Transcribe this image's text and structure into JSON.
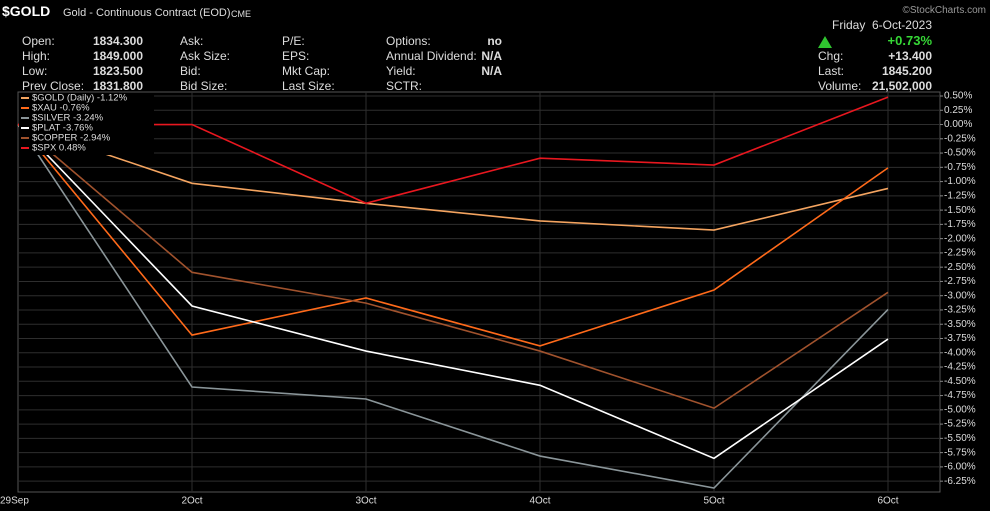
{
  "header": {
    "symbol": "$GOLD",
    "description": "Gold - Continuous Contract (EOD)",
    "exchange": "CME",
    "watermark": "©StockCharts.com",
    "weekday": "Friday",
    "date": "6-Oct-2023",
    "change_pct": "+0.73%"
  },
  "quote": {
    "columns": [
      [
        {
          "label": "Open:",
          "value": "1834.300"
        },
        {
          "label": "High:",
          "value": "1849.000"
        },
        {
          "label": "Low:",
          "value": "1823.500"
        },
        {
          "label": "Prev Close:",
          "value": "1831.800"
        }
      ],
      [
        {
          "label": "Ask:"
        },
        {
          "label": "Ask Size:"
        },
        {
          "label": "Bid:"
        },
        {
          "label": "Bid Size:"
        }
      ],
      [
        {
          "label": "P/E:"
        },
        {
          "label": "EPS:"
        },
        {
          "label": "Mkt Cap:"
        },
        {
          "label": "Last Size:"
        }
      ],
      [
        {
          "label": "Options:",
          "value": "no"
        },
        {
          "label": "Annual Dividend:",
          "value": "N/A"
        },
        {
          "label": "Yield:",
          "value": "N/A"
        },
        {
          "label": "SCTR:"
        }
      ],
      [
        {
          "label": "Chg:",
          "value": "+13.400"
        },
        {
          "label": "Last:",
          "value": "1845.200"
        },
        {
          "label": "Volume:",
          "value": "21,502,000"
        }
      ]
    ]
  },
  "chart_data": {
    "type": "line",
    "categories": [
      "29Sep",
      "2Oct",
      "3Oct",
      "4Oct",
      "5Oct",
      "6Oct"
    ],
    "series": [
      {
        "name": "$GOLD (Daily) -1.12%",
        "color": "#f4a460",
        "values": [
          0,
          -1.03,
          -1.38,
          -1.69,
          -1.85,
          -1.12
        ]
      },
      {
        "name": "$XAU -0.76%",
        "color": "#ff6a1a",
        "values": [
          0,
          -3.69,
          -3.04,
          -3.88,
          -2.9,
          -0.76
        ]
      },
      {
        "name": "$SILVER -3.24%",
        "color": "#8a9599",
        "values": [
          0,
          -4.6,
          -4.81,
          -5.81,
          -6.37,
          -3.24
        ]
      },
      {
        "name": "$PLAT -3.76%",
        "color": "#ffffff",
        "values": [
          0,
          -3.18,
          -3.97,
          -4.57,
          -5.85,
          -3.76
        ]
      },
      {
        "name": "$COPPER -2.94%",
        "color": "#a0522d",
        "values": [
          0,
          -2.59,
          -3.13,
          -3.97,
          -4.97,
          -2.94
        ]
      },
      {
        "name": "$SPX 0.48%",
        "color": "#e8171f",
        "values": [
          0,
          0,
          -1.38,
          -0.59,
          -0.71,
          0.48
        ]
      }
    ],
    "ylim": [
      -6.44,
      0.57
    ],
    "yticks": [
      {
        "value": 0.5,
        "label": "0.50%"
      },
      {
        "value": 0.25,
        "label": "0.25%"
      },
      {
        "value": 0,
        "label": "0.00%"
      },
      {
        "value": -0.25,
        "label": "-0.25%"
      },
      {
        "value": -0.5,
        "label": "-0.50%"
      },
      {
        "value": -0.75,
        "label": "-0.75%"
      },
      {
        "value": -1,
        "label": "-1.00%"
      },
      {
        "value": -1.25,
        "label": "-1.25%"
      },
      {
        "value": -1.5,
        "label": "-1.50%"
      },
      {
        "value": -1.75,
        "label": "-1.75%"
      },
      {
        "value": -2,
        "label": "-2.00%"
      },
      {
        "value": -2.25,
        "label": "-2.25%"
      },
      {
        "value": -2.5,
        "label": "-2.50%"
      },
      {
        "value": -2.75,
        "label": "-2.75%"
      },
      {
        "value": -3,
        "label": "-3.00%"
      },
      {
        "value": -3.25,
        "label": "-3.25%"
      },
      {
        "value": -3.5,
        "label": "-3.50%"
      },
      {
        "value": -3.75,
        "label": "-3.75%"
      },
      {
        "value": -4,
        "label": "-4.00%"
      },
      {
        "value": -4.25,
        "label": "-4.25%"
      },
      {
        "value": -4.5,
        "label": "-4.50%"
      },
      {
        "value": -4.75,
        "label": "-4.75%"
      },
      {
        "value": -5,
        "label": "-5.00%"
      },
      {
        "value": -5.25,
        "label": "-5.25%"
      },
      {
        "value": -5.5,
        "label": "-5.50%"
      },
      {
        "value": -5.75,
        "label": "-5.75%"
      },
      {
        "value": -6,
        "label": "-6.00%"
      },
      {
        "value": -6.25,
        "label": "-6.25%"
      }
    ],
    "grid": true
  }
}
